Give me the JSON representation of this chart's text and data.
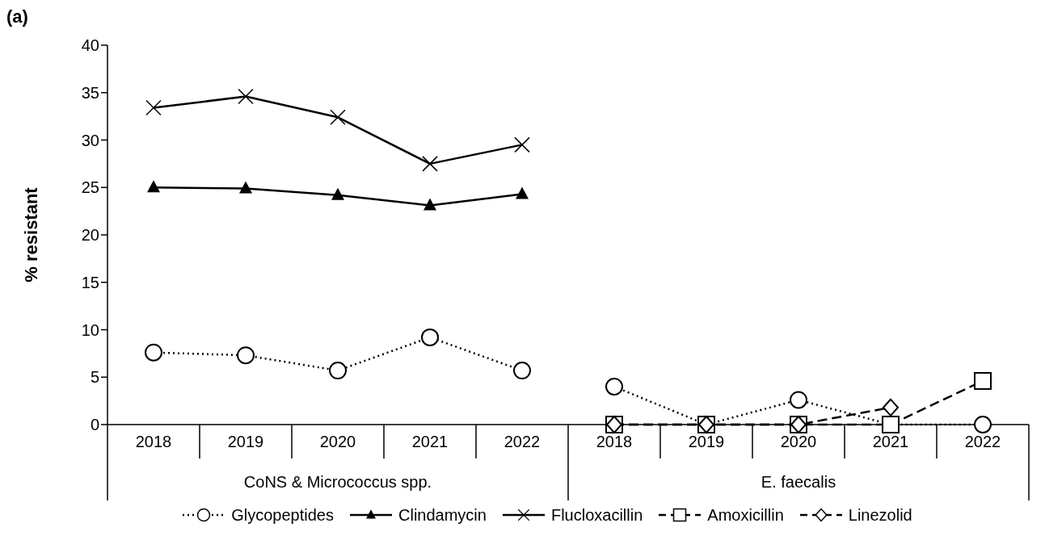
{
  "chart_data": {
    "type": "line",
    "title": "(a)",
    "ylabel": "% resistant",
    "categories": [
      "2018",
      "2019",
      "2020",
      "2021",
      "2022",
      "2018",
      "2019",
      "2020",
      "2021",
      "2022"
    ],
    "annotations": [
      "CoNS & Micrococcus spp.",
      "E. faecalis"
    ],
    "ylim": [
      0,
      40
    ],
    "yticks": [
      0,
      5,
      10,
      15,
      20,
      25,
      30,
      35,
      40
    ],
    "legend": "bottom",
    "series": [
      {
        "name": "Glycopeptides",
        "color": "#000000",
        "marker": "circle",
        "line_style": "dotted",
        "values": [
          7.6,
          7.3,
          5.7,
          9.2,
          5.7,
          4.0,
          0,
          2.6,
          0,
          0
        ]
      },
      {
        "name": "Clindamycin",
        "color": "#000000",
        "marker": "triangle",
        "line_style": "solid",
        "values": [
          25.0,
          24.9,
          24.2,
          23.1,
          24.3,
          null,
          null,
          null,
          null,
          null
        ]
      },
      {
        "name": "Flucloxacillin",
        "color": "#000000",
        "marker": "cross",
        "line_style": "solid",
        "values": [
          33.4,
          34.6,
          32.4,
          27.5,
          29.5,
          null,
          null,
          null,
          null,
          null
        ]
      },
      {
        "name": "Amoxicillin",
        "color": "#000000",
        "marker": "square",
        "line_style": "dashed",
        "values": [
          null,
          null,
          null,
          null,
          null,
          0,
          0,
          0,
          0,
          4.6
        ]
      },
      {
        "name": "Linezolid",
        "color": "#000000",
        "marker": "diamond",
        "line_style": "dashed",
        "values": [
          null,
          null,
          null,
          null,
          null,
          0,
          0,
          0,
          1.8,
          null
        ]
      }
    ]
  }
}
